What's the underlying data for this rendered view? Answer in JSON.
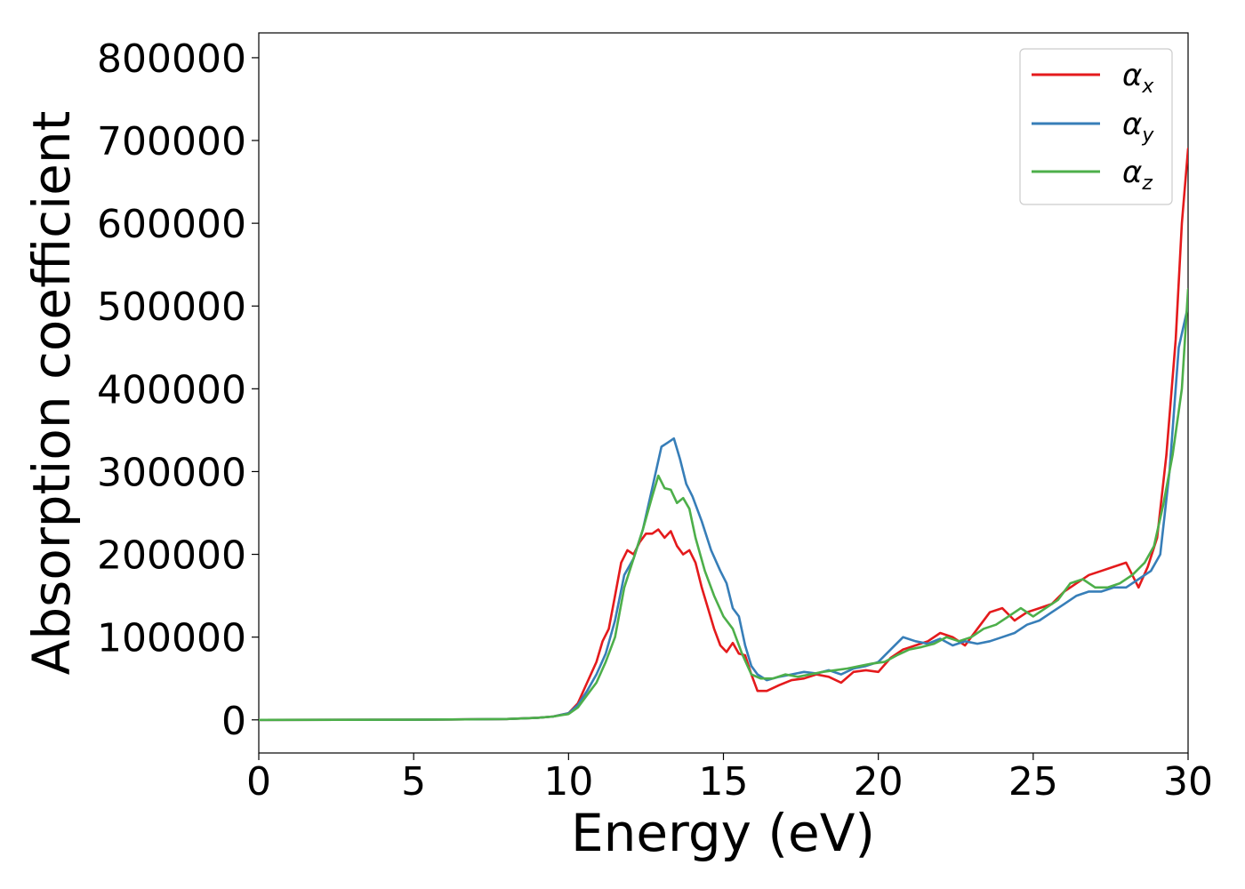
{
  "chart_data": {
    "type": "line",
    "xlabel": "Energy (eV)",
    "ylabel": "Absorption coefficient",
    "xlim": [
      0,
      30
    ],
    "ylim": [
      -40000,
      830000
    ],
    "xticks": [
      0,
      5,
      10,
      15,
      20,
      25,
      30
    ],
    "yticks": [
      0,
      100000,
      200000,
      300000,
      400000,
      500000,
      600000,
      700000,
      800000
    ],
    "grid": false,
    "legend_position": "top-right",
    "series": [
      {
        "name": "α_x",
        "label_main": "α",
        "label_sub": "x",
        "color": "#e41a1c",
        "x": [
          0,
          5,
          8,
          9,
          9.5,
          10,
          10.3,
          10.6,
          10.9,
          11.1,
          11.3,
          11.5,
          11.7,
          11.9,
          12.1,
          12.3,
          12.5,
          12.7,
          12.9,
          13.1,
          13.3,
          13.5,
          13.7,
          13.9,
          14.1,
          14.3,
          14.5,
          14.7,
          14.9,
          15.1,
          15.3,
          15.5,
          15.7,
          15.9,
          16.1,
          16.4,
          16.8,
          17.2,
          17.6,
          18.0,
          18.4,
          18.8,
          19.2,
          19.6,
          20.0,
          20.4,
          20.8,
          21.2,
          21.6,
          22.0,
          22.4,
          22.8,
          23.2,
          23.6,
          24.0,
          24.4,
          24.8,
          25.2,
          25.6,
          26.0,
          26.4,
          26.8,
          27.2,
          27.6,
          28.0,
          28.4,
          28.7,
          29.0,
          29.3,
          29.6,
          29.8,
          30.0
        ],
        "y": [
          0,
          200,
          1000,
          2500,
          4000,
          8000,
          20000,
          45000,
          70000,
          95000,
          110000,
          150000,
          190000,
          205000,
          200000,
          215000,
          225000,
          225000,
          230000,
          220000,
          228000,
          210000,
          200000,
          205000,
          190000,
          160000,
          135000,
          110000,
          90000,
          82000,
          93000,
          80000,
          78000,
          55000,
          35000,
          35000,
          42000,
          48000,
          50000,
          55000,
          52000,
          45000,
          58000,
          60000,
          58000,
          75000,
          85000,
          90000,
          95000,
          105000,
          100000,
          90000,
          110000,
          130000,
          135000,
          120000,
          130000,
          135000,
          140000,
          155000,
          165000,
          175000,
          180000,
          185000,
          190000,
          160000,
          185000,
          220000,
          320000,
          460000,
          600000,
          690000
        ]
      },
      {
        "name": "α_y",
        "label_main": "α",
        "label_sub": "y",
        "color": "#377eb8",
        "x": [
          0,
          5,
          8,
          9,
          9.5,
          10,
          10.3,
          10.6,
          10.9,
          11.2,
          11.5,
          11.8,
          12.1,
          12.4,
          12.7,
          13.0,
          13.2,
          13.4,
          13.6,
          13.8,
          14.0,
          14.3,
          14.6,
          14.9,
          15.1,
          15.3,
          15.5,
          15.7,
          15.9,
          16.1,
          16.4,
          16.8,
          17.2,
          17.6,
          18.0,
          18.4,
          18.8,
          19.2,
          19.6,
          20.0,
          20.4,
          20.8,
          21.2,
          21.6,
          22.0,
          22.4,
          22.8,
          23.2,
          23.6,
          24.0,
          24.4,
          24.8,
          25.2,
          25.6,
          26.0,
          26.4,
          26.8,
          27.2,
          27.6,
          28.0,
          28.4,
          28.8,
          29.1,
          29.4,
          29.7,
          30.0
        ],
        "y": [
          0,
          200,
          1000,
          2500,
          4000,
          8000,
          18000,
          35000,
          55000,
          80000,
          120000,
          175000,
          195000,
          230000,
          280000,
          330000,
          335000,
          340000,
          315000,
          285000,
          270000,
          240000,
          205000,
          180000,
          165000,
          135000,
          125000,
          90000,
          65000,
          55000,
          48000,
          52000,
          55000,
          58000,
          56000,
          60000,
          55000,
          62000,
          65000,
          70000,
          85000,
          100000,
          95000,
          92000,
          98000,
          90000,
          95000,
          92000,
          95000,
          100000,
          105000,
          115000,
          120000,
          130000,
          140000,
          150000,
          155000,
          155000,
          160000,
          160000,
          170000,
          180000,
          200000,
          300000,
          450000,
          500000
        ]
      },
      {
        "name": "α_z",
        "label_main": "α",
        "label_sub": "z",
        "color": "#4daf4a",
        "x": [
          0,
          5,
          8,
          9,
          9.5,
          10,
          10.3,
          10.6,
          10.9,
          11.2,
          11.5,
          11.8,
          12.1,
          12.4,
          12.7,
          12.9,
          13.1,
          13.3,
          13.5,
          13.7,
          13.9,
          14.1,
          14.4,
          14.7,
          15.0,
          15.3,
          15.6,
          15.9,
          16.2,
          16.6,
          17.0,
          17.4,
          17.8,
          18.2,
          18.6,
          19.0,
          19.4,
          19.8,
          20.2,
          20.6,
          21.0,
          21.4,
          21.8,
          22.2,
          22.6,
          23.0,
          23.4,
          23.8,
          24.2,
          24.6,
          25.0,
          25.4,
          25.8,
          26.2,
          26.6,
          27.0,
          27.4,
          27.8,
          28.2,
          28.6,
          28.9,
          29.2,
          29.5,
          29.8,
          30.0
        ],
        "y": [
          0,
          200,
          1000,
          2500,
          4000,
          7000,
          15000,
          30000,
          45000,
          70000,
          100000,
          160000,
          195000,
          230000,
          270000,
          295000,
          280000,
          278000,
          262000,
          268000,
          255000,
          220000,
          180000,
          150000,
          125000,
          110000,
          80000,
          55000,
          50000,
          50000,
          55000,
          52000,
          55000,
          58000,
          60000,
          62000,
          65000,
          68000,
          70000,
          78000,
          85000,
          88000,
          92000,
          100000,
          95000,
          100000,
          110000,
          115000,
          125000,
          135000,
          125000,
          135000,
          145000,
          165000,
          170000,
          160000,
          160000,
          165000,
          175000,
          190000,
          210000,
          260000,
          320000,
          400000,
          520000
        ]
      }
    ]
  }
}
